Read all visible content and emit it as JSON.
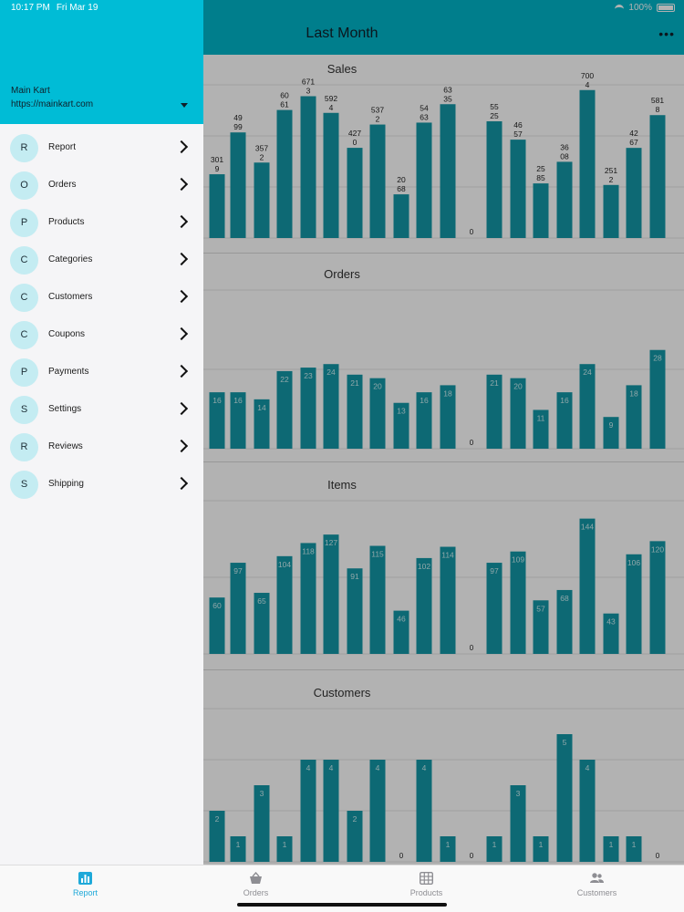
{
  "status_bar": {
    "time": "10:17 PM",
    "date": "Fri Mar 19",
    "battery": "100%"
  },
  "header": {
    "title": "Last Month",
    "more_icon": "more-horizontal-icon"
  },
  "drawer": {
    "store_name": "Main Kart",
    "store_url": "https://mainkart.com",
    "items": [
      {
        "initial": "R",
        "label": "Report"
      },
      {
        "initial": "O",
        "label": "Orders"
      },
      {
        "initial": "P",
        "label": "Products"
      },
      {
        "initial": "C",
        "label": "Categories"
      },
      {
        "initial": "C",
        "label": "Customers"
      },
      {
        "initial": "C",
        "label": "Coupons"
      },
      {
        "initial": "P",
        "label": "Payments"
      },
      {
        "initial": "S",
        "label": "Settings"
      },
      {
        "initial": "R",
        "label": "Reviews"
      },
      {
        "initial": "S",
        "label": "Shipping"
      }
    ]
  },
  "tabs": [
    {
      "label": "Report",
      "icon": "bar-chart-icon",
      "active": true
    },
    {
      "label": "Orders",
      "icon": "basket-icon",
      "active": false
    },
    {
      "label": "Products",
      "icon": "grid-icon",
      "active": false
    },
    {
      "label": "Customers",
      "icon": "people-icon",
      "active": false
    }
  ],
  "colors": {
    "accent": "#00bcd6",
    "bar": "#1497a6",
    "active_tab": "#1ea9d9"
  },
  "chart_data": [
    {
      "type": "bar",
      "title": "Sales",
      "values": [
        3019,
        4999,
        3572,
        6061,
        6713,
        5924,
        4270,
        5372,
        2068,
        5463,
        6335,
        0,
        5525,
        4657,
        2585,
        3608,
        7004,
        2512,
        4267,
        5818
      ],
      "labels": [
        "301\n9",
        "49\n99",
        "357\n2",
        "60\n61",
        "671\n3",
        "592\n4",
        "427\n0",
        "537\n2",
        "20\n68",
        "54\n63",
        "63\n35",
        "0",
        "55\n25",
        "46\n57",
        "25\n85",
        "36\n08",
        "700\n4",
        "251\n2",
        "42\n67",
        "581\n8"
      ],
      "ylim": [
        0,
        7900
      ]
    },
    {
      "type": "bar",
      "title": "Orders",
      "values": [
        16,
        16,
        14,
        22,
        23,
        24,
        21,
        20,
        13,
        16,
        18,
        0,
        21,
        20,
        11,
        16,
        24,
        9,
        18,
        28
      ],
      "ylim": [
        0,
        45
      ]
    },
    {
      "type": "bar",
      "title": "Items",
      "values": [
        60,
        97,
        65,
        104,
        118,
        127,
        91,
        115,
        46,
        102,
        114,
        0,
        97,
        109,
        57,
        68,
        144,
        43,
        106,
        120
      ],
      "ylim": [
        0,
        165
      ]
    },
    {
      "type": "bar",
      "title": "Customers",
      "values": [
        2,
        1,
        3,
        1,
        4,
        4,
        2,
        4,
        0,
        4,
        1,
        0,
        1,
        3,
        1,
        5,
        4,
        1,
        1,
        0
      ],
      "ylim": [
        0,
        6
      ]
    }
  ]
}
